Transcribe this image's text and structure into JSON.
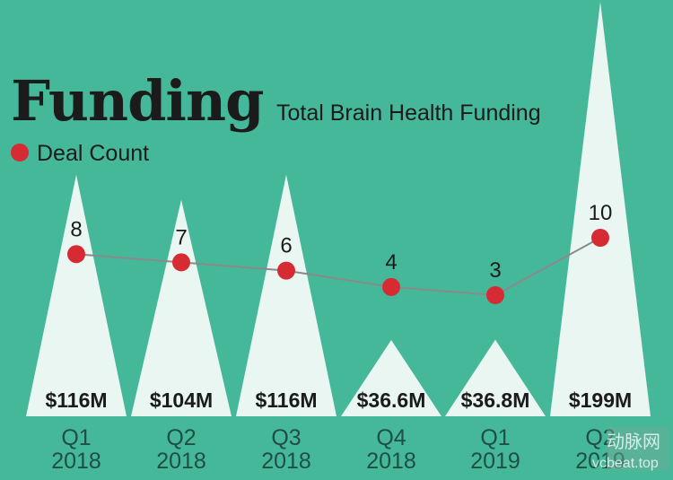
{
  "chart_data": {
    "type": "area",
    "title": "Funding",
    "subtitle": "Total Brain Health Funding",
    "legend": {
      "label": "Deal Count",
      "color": "#d62b32",
      "placement": "top-left"
    },
    "categories": [
      {
        "line1": "Q1",
        "line2": "2018"
      },
      {
        "line1": "Q2",
        "line2": "2018"
      },
      {
        "line1": "Q3",
        "line2": "2018"
      },
      {
        "line1": "Q4",
        "line2": "2018"
      },
      {
        "line1": "Q1",
        "line2": "2019"
      },
      {
        "line1": "Q2",
        "line2": "2019"
      }
    ],
    "series": [
      {
        "values_musd": [
          116,
          104,
          116,
          36.6,
          36.8,
          199
        ],
        "labels": [
          "$116M",
          "$104M",
          "$116M",
          "$36.6M",
          "$36.8M",
          "$199M"
        ]
      },
      {
        "name": "Deal Count",
        "values": [
          8,
          7,
          6,
          4,
          3,
          10
        ]
      }
    ],
    "colors": {
      "background": "#45b89a",
      "peak": "#e9f6f1",
      "line": "#8a8a8a",
      "marker": "#d62b32"
    }
  },
  "watermark": {
    "text": "动脉网",
    "subtext": "vcbeat.top"
  }
}
